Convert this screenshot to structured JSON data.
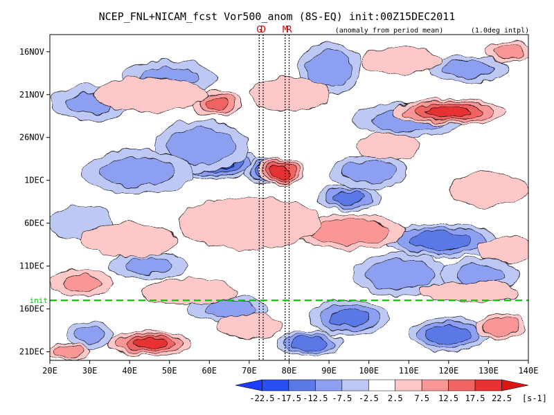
{
  "chart_data": {
    "type": "heatmap",
    "title": "NCEP_FNL+NICAM_fcst Vor500_anom (8S-EQ) init:00Z15DEC2011",
    "subtitle_left": "(anomaly from period mean)",
    "subtitle_right": "(1.0deg intpl)",
    "x_axis": {
      "range": [
        20,
        140
      ],
      "ticks": [
        20,
        30,
        40,
        50,
        60,
        70,
        80,
        90,
        100,
        110,
        120,
        130,
        140
      ],
      "tick_labels": [
        "20E",
        "30E",
        "40E",
        "50E",
        "60E",
        "70E",
        "80E",
        "90E",
        "100E",
        "110E",
        "120E",
        "130E",
        "140E"
      ]
    },
    "y_axis": {
      "range": [
        "2011-11-14",
        "2011-12-22"
      ],
      "ticks": [
        "2011-11-16",
        "2011-11-21",
        "2011-11-26",
        "2011-12-01",
        "2011-12-06",
        "2011-12-11",
        "2011-12-16",
        "2011-12-21"
      ],
      "tick_labels": [
        "16NOV",
        "21NOV",
        "26NOV",
        "1DEC",
        "6DEC",
        "11DEC",
        "16DEC",
        "21DEC"
      ],
      "direction": "time increases downward"
    },
    "markers": [
      {
        "label": "G",
        "lon": 72.5
      },
      {
        "label": "D",
        "lon": 73.5
      },
      {
        "label": "M",
        "lon": 79
      },
      {
        "label": "R",
        "lon": 80
      }
    ],
    "init_line": {
      "label": "init",
      "date": "2011-12-15",
      "color": "#00c800"
    },
    "colorbar": {
      "levels": [
        -22.5,
        -17.5,
        -12.5,
        -7.5,
        -2.5,
        2.5,
        7.5,
        12.5,
        17.5,
        22.5
      ],
      "level_labels": [
        "-22.5",
        "-17.5",
        "-12.5",
        "-7.5",
        "-2.5",
        "2.5",
        "7.5",
        "12.5",
        "17.5",
        "22.5"
      ],
      "colors": [
        "#1e3cff",
        "#2850f0",
        "#5a78e6",
        "#8c9ff0",
        "#bec8f5",
        "#ffffff",
        "#ffc8c8",
        "#fa9696",
        "#f06464",
        "#e63232",
        "#dc1414"
      ],
      "unit": "[s-1]"
    },
    "blobs": [
      {
        "lon": 62,
        "date": "2011-11-29",
        "value": -22,
        "rx": 10,
        "ry": 1.8
      },
      {
        "lon": 75,
        "date": "2011-11-30",
        "value": -22,
        "rx": 6,
        "ry": 1.5
      },
      {
        "lon": 58,
        "date": "2011-11-27",
        "value": -14,
        "rx": 12,
        "ry": 3
      },
      {
        "lon": 42,
        "date": "2011-11-30",
        "value": -12,
        "rx": 14,
        "ry": 2.5
      },
      {
        "lon": 95,
        "date": "2011-12-03",
        "value": -16,
        "rx": 8,
        "ry": 1.5
      },
      {
        "lon": 100,
        "date": "2011-11-30",
        "value": -12,
        "rx": 10,
        "ry": 2
      },
      {
        "lon": 110,
        "date": "2011-11-24",
        "value": -12,
        "rx": 14,
        "ry": 2
      },
      {
        "lon": 125,
        "date": "2011-11-18",
        "value": -12,
        "rx": 10,
        "ry": 1.5
      },
      {
        "lon": 90,
        "date": "2011-11-18",
        "value": -14,
        "rx": 8,
        "ry": 3
      },
      {
        "lon": 50,
        "date": "2011-11-19",
        "value": -10,
        "rx": 12,
        "ry": 2
      },
      {
        "lon": 30,
        "date": "2011-11-22",
        "value": -10,
        "rx": 10,
        "ry": 2
      },
      {
        "lon": 118,
        "date": "2011-12-08",
        "value": -18,
        "rx": 14,
        "ry": 2
      },
      {
        "lon": 108,
        "date": "2011-12-12",
        "value": -14,
        "rx": 12,
        "ry": 2.5
      },
      {
        "lon": 128,
        "date": "2011-12-12",
        "value": -10,
        "rx": 10,
        "ry": 2
      },
      {
        "lon": 95,
        "date": "2011-12-17",
        "value": -16,
        "rx": 10,
        "ry": 2
      },
      {
        "lon": 120,
        "date": "2011-12-19",
        "value": -18,
        "rx": 10,
        "ry": 2
      },
      {
        "lon": 65,
        "date": "2011-12-16",
        "value": -10,
        "rx": 10,
        "ry": 1.5
      },
      {
        "lon": 28,
        "date": "2011-12-06",
        "value": -8,
        "rx": 8,
        "ry": 2
      },
      {
        "lon": 45,
        "date": "2011-12-11",
        "value": -10,
        "rx": 10,
        "ry": 1.5
      },
      {
        "lon": 85,
        "date": "2011-12-20",
        "value": -18,
        "rx": 8,
        "ry": 1.5
      },
      {
        "lon": 30,
        "date": "2011-12-19",
        "value": -10,
        "rx": 6,
        "ry": 1.5
      },
      {
        "lon": 78,
        "date": "2011-11-30",
        "value": 22,
        "rx": 6,
        "ry": 1.5
      },
      {
        "lon": 120,
        "date": "2011-11-23",
        "value": 20,
        "rx": 14,
        "ry": 1.5
      },
      {
        "lon": 62,
        "date": "2011-11-22",
        "value": 16,
        "rx": 6,
        "ry": 1.5
      },
      {
        "lon": 95,
        "date": "2011-12-07",
        "value": 14,
        "rx": 14,
        "ry": 2
      },
      {
        "lon": 70,
        "date": "2011-12-06",
        "value": 8,
        "rx": 18,
        "ry": 3
      },
      {
        "lon": 45,
        "date": "2011-12-20",
        "value": 20,
        "rx": 10,
        "ry": 1.5
      },
      {
        "lon": 25,
        "date": "2011-12-21",
        "value": 14,
        "rx": 5,
        "ry": 1
      },
      {
        "lon": 45,
        "date": "2011-11-21",
        "value": 9,
        "rx": 14,
        "ry": 2
      },
      {
        "lon": 80,
        "date": "2011-11-21",
        "value": 8,
        "rx": 10,
        "ry": 2
      },
      {
        "lon": 108,
        "date": "2011-11-17",
        "value": 8,
        "rx": 10,
        "ry": 1.5
      },
      {
        "lon": 135,
        "date": "2011-11-16",
        "value": 12,
        "rx": 6,
        "ry": 1.2
      },
      {
        "lon": 130,
        "date": "2011-12-02",
        "value": 8,
        "rx": 10,
        "ry": 2
      },
      {
        "lon": 40,
        "date": "2011-12-08",
        "value": 8,
        "rx": 12,
        "ry": 2
      },
      {
        "lon": 28,
        "date": "2011-12-13",
        "value": 10,
        "rx": 8,
        "ry": 1.5
      },
      {
        "lon": 55,
        "date": "2011-12-14",
        "value": 9,
        "rx": 12,
        "ry": 1.5
      },
      {
        "lon": 125,
        "date": "2011-12-14",
        "value": 9,
        "rx": 12,
        "ry": 1.2
      },
      {
        "lon": 70,
        "date": "2011-12-18",
        "value": 8,
        "rx": 8,
        "ry": 1.5
      },
      {
        "lon": 133,
        "date": "2011-12-18",
        "value": 14,
        "rx": 6,
        "ry": 1.5
      },
      {
        "lon": 135,
        "date": "2011-12-09",
        "value": 8,
        "rx": 8,
        "ry": 1.5
      },
      {
        "lon": 105,
        "date": "2011-11-27",
        "value": 7,
        "rx": 8,
        "ry": 1.5
      }
    ]
  }
}
